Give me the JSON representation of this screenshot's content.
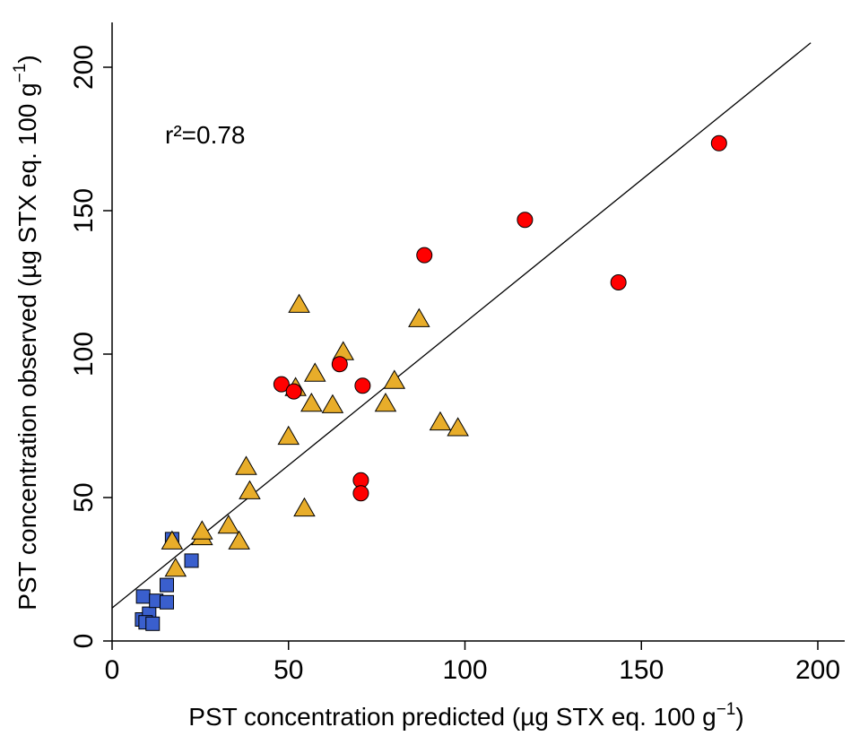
{
  "chart_data": {
    "type": "scatter",
    "title": "",
    "xlabel": "PST concentration predicted (µg STX eq. 100 g",
    "xlabel_sup": "−1",
    "xlabel_close": ")",
    "ylabel": "PST concentration observed (µg STX eq. 100 g",
    "ylabel_sup": "−1",
    "ylabel_close": ")",
    "xlim": [
      0,
      205
    ],
    "ylim": [
      0,
      215
    ],
    "x_ticks": [
      "0",
      "50",
      "100",
      "150",
      "200"
    ],
    "y_ticks": [
      "0",
      "50",
      "100",
      "150",
      "200"
    ],
    "annotation": "r²=0.78",
    "grid": false,
    "fit_line": {
      "x": [
        0,
        198
      ],
      "y": [
        11.5,
        208.5
      ]
    },
    "colors": {
      "squares": "#3a5fcd",
      "triangles": "#e8ad2a",
      "circles": "#ff0000"
    },
    "series": [
      {
        "marker": "square",
        "points": [
          [
            8.5,
            7.5
          ],
          [
            10.5,
            9.5
          ],
          [
            9.5,
            6.5
          ],
          [
            11.5,
            6
          ],
          [
            8.8,
            15.5
          ],
          [
            12.5,
            14
          ],
          [
            15.5,
            13.5
          ],
          [
            15.5,
            19.5
          ],
          [
            22.5,
            28
          ],
          [
            17,
            35.5
          ]
        ]
      },
      {
        "marker": "triangle",
        "points": [
          [
            17,
            34.5
          ],
          [
            18,
            25
          ],
          [
            25.5,
            36
          ],
          [
            25.5,
            38
          ],
          [
            33,
            40
          ],
          [
            36,
            34.5
          ],
          [
            38,
            60.5
          ],
          [
            39,
            52
          ],
          [
            50,
            71
          ],
          [
            53,
            117
          ],
          [
            52,
            88
          ],
          [
            54.5,
            46
          ],
          [
            56.5,
            82.5
          ],
          [
            57.5,
            93
          ],
          [
            62.5,
            82
          ],
          [
            65.5,
            100.5
          ],
          [
            77.5,
            82.5
          ],
          [
            80,
            90.5
          ],
          [
            87,
            112
          ],
          [
            93,
            76
          ],
          [
            98,
            74
          ]
        ]
      },
      {
        "marker": "circle",
        "points": [
          [
            48,
            89.5
          ],
          [
            51.5,
            87
          ],
          [
            64.5,
            96.5
          ],
          [
            71,
            89
          ],
          [
            70.5,
            56
          ],
          [
            70.5,
            51.5
          ],
          [
            88.5,
            134.5
          ],
          [
            117,
            146.8
          ],
          [
            143.5,
            125
          ],
          [
            172,
            173.5
          ]
        ]
      }
    ]
  }
}
